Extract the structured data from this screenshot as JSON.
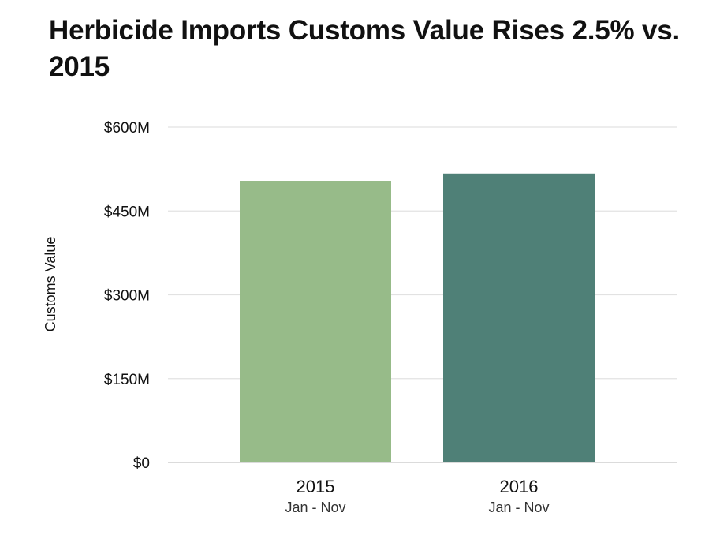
{
  "chart_data": {
    "type": "bar",
    "title": "Herbicide Imports Customs Value Rises 2.5% vs. 2015",
    "ylabel": "Customs Value",
    "xlabel": "",
    "ylim": [
      0,
      600
    ],
    "y_unit": "$M",
    "y_ticks": [
      0,
      150,
      300,
      450,
      600
    ],
    "y_tick_labels": [
      "$0",
      "$150M",
      "$300M",
      "$450M",
      "$600M"
    ],
    "categories": [
      "2015",
      "2016"
    ],
    "category_sublabels": [
      "Jan - Nov",
      "Jan - Nov"
    ],
    "values": [
      504,
      517
    ],
    "bar_colors": [
      "#97bb89",
      "#4f8077"
    ],
    "grid": true,
    "legend": "none"
  },
  "colors": {
    "gridline": "#e2e2e2",
    "baseline": "#cfcfcf",
    "text": "#111111"
  }
}
